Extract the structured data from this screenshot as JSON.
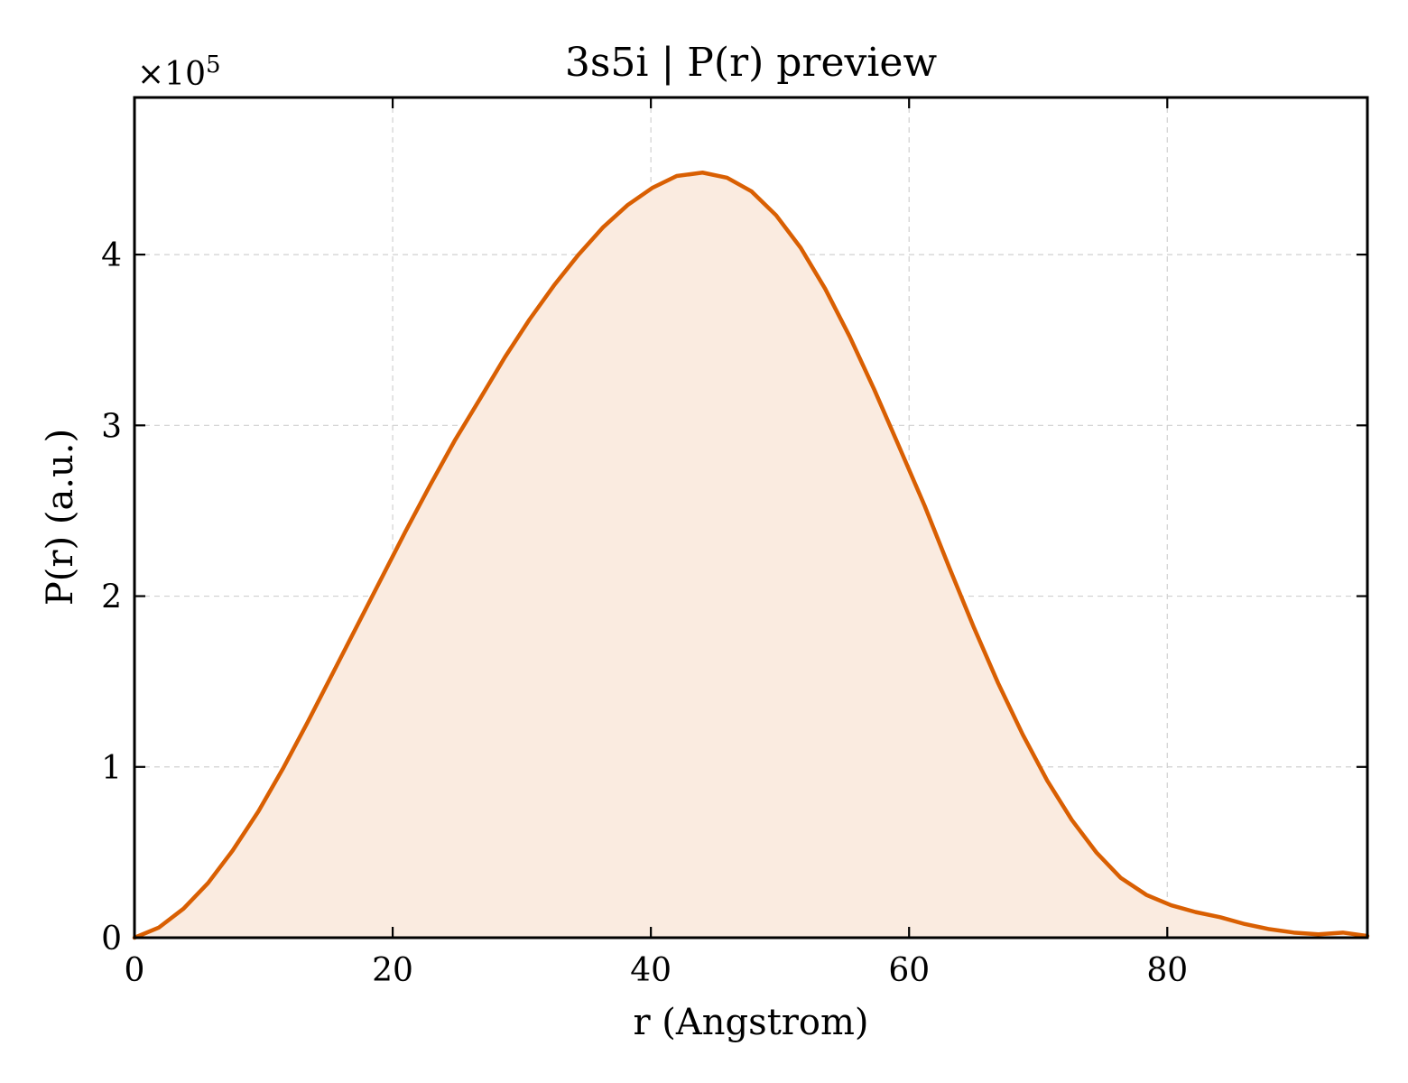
{
  "chart_data": {
    "type": "area",
    "title": "3s5i | P(r) preview",
    "xlabel": "r (Angstrom)",
    "ylabel": "P(r) (a.u.)",
    "y_multiplier_prefix": "×10",
    "y_multiplier_exponent": "5",
    "xlim": [
      0,
      95.5
    ],
    "ylim": [
      0,
      4.92
    ],
    "x_ticks": [
      0,
      20,
      40,
      60,
      80
    ],
    "x_tick_labels": [
      "0",
      "20",
      "40",
      "60",
      "80"
    ],
    "y_ticks": [
      0,
      1,
      2,
      3,
      4
    ],
    "y_tick_labels": [
      "0",
      "1",
      "2",
      "3",
      "4"
    ],
    "grid": true,
    "line_color": "#d95f02",
    "fill_color": "#faebe0",
    "series": [
      {
        "x": [
          0,
          1.9,
          3.8,
          5.7,
          7.6,
          9.6,
          11.5,
          13.4,
          15.3,
          17.2,
          19.1,
          21.0,
          22.9,
          24.8,
          26.8,
          28.7,
          30.6,
          32.5,
          34.4,
          36.3,
          38.2,
          40.1,
          42.0,
          44.0,
          45.9,
          47.8,
          49.7,
          51.6,
          53.5,
          55.4,
          57.3,
          59.2,
          61.2,
          63.1,
          65.0,
          66.9,
          68.8,
          70.7,
          72.6,
          74.5,
          76.4,
          78.4,
          80.3,
          82.2,
          84.1,
          86.0,
          87.9,
          89.8,
          91.7,
          93.6,
          95.5
        ],
        "y": [
          0.0,
          0.06,
          0.17,
          0.32,
          0.51,
          0.74,
          0.99,
          1.26,
          1.54,
          1.82,
          2.1,
          2.38,
          2.65,
          2.91,
          3.16,
          3.4,
          3.62,
          3.82,
          4.0,
          4.16,
          4.29,
          4.39,
          4.46,
          4.48,
          4.45,
          4.37,
          4.23,
          4.04,
          3.8,
          3.52,
          3.21,
          2.88,
          2.53,
          2.17,
          1.82,
          1.49,
          1.19,
          0.92,
          0.69,
          0.5,
          0.35,
          0.25,
          0.19,
          0.15,
          0.12,
          0.08,
          0.05,
          0.03,
          0.02,
          0.03,
          0.01
        ]
      }
    ]
  }
}
